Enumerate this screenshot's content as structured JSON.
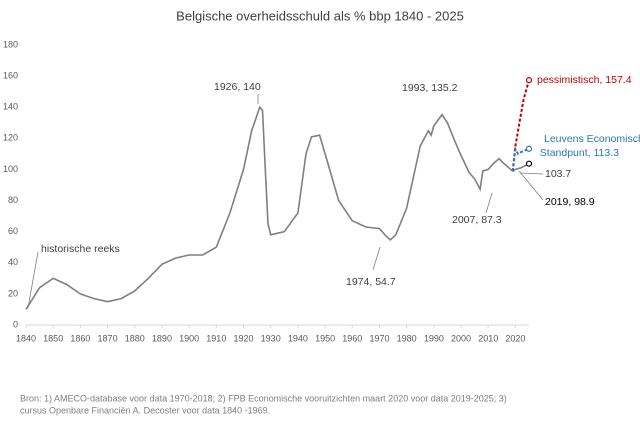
{
  "chart_data": {
    "type": "line",
    "title": "Belgische overheidsschuld als % bbp 1840 - 2025",
    "xlim": [
      1840,
      2025
    ],
    "xticks": [
      1840,
      1850,
      1860,
      1870,
      1880,
      1890,
      1900,
      1910,
      1920,
      1930,
      1940,
      1950,
      1960,
      1970,
      1980,
      1990,
      2000,
      2010,
      2020
    ],
    "ylim": [
      0,
      180
    ],
    "yticks": [
      0,
      20,
      40,
      60,
      80,
      100,
      120,
      140,
      160,
      180
    ],
    "grid": false,
    "series": [
      {
        "name": "historische reeks",
        "color": "#7f7f7f",
        "x": [
          1840,
          1845,
          1850,
          1855,
          1860,
          1865,
          1870,
          1875,
          1880,
          1885,
          1890,
          1895,
          1900,
          1905,
          1910,
          1915,
          1920,
          1923,
          1926,
          1927,
          1928,
          1929,
          1930,
          1935,
          1940,
          1943,
          1945,
          1948,
          1950,
          1955,
          1960,
          1965,
          1970,
          1972,
          1974,
          1976,
          1980,
          1985,
          1988,
          1989,
          1990,
          1993,
          1995,
          1998,
          2000,
          2003,
          2005,
          2007,
          2008,
          2010,
          2012,
          2014,
          2015,
          2017,
          2019
        ],
        "values": [
          10,
          24,
          30,
          26,
          20,
          17,
          15,
          17,
          22,
          30,
          39,
          43,
          45,
          45,
          50,
          72,
          100,
          125,
          140,
          138,
          100,
          65,
          58,
          60,
          72,
          110,
          121,
          122,
          110,
          80,
          67,
          63,
          62,
          58,
          54.7,
          58,
          75,
          115,
          125,
          122,
          128,
          135.2,
          130,
          117,
          109,
          98,
          94,
          87.3,
          99,
          100,
          104,
          107,
          105,
          102,
          98.9
        ]
      },
      {
        "color": "#7f7f7f",
        "dashed": false,
        "x": [
          2019,
          2020,
          2022,
          2025
        ],
        "values": [
          98.9,
          100,
          101,
          103.7
        ],
        "marker": "#000000"
      },
      {
        "color": "#c00000",
        "dashed": true,
        "x": [
          2019,
          2020,
          2021,
          2022,
          2023,
          2025
        ],
        "values": [
          98.9,
          115,
          125,
          135,
          145,
          157.4
        ],
        "marker": "#c00000"
      },
      {
        "color": "#2e75b6",
        "dashed": true,
        "x": [
          2019,
          2020,
          2021,
          2022,
          2023,
          2025
        ],
        "values": [
          98.9,
          113,
          110,
          111,
          112,
          113.3
        ],
        "marker": "#2e75b6"
      }
    ],
    "annotations": [
      "1926, 140",
      "1993, 135.2",
      "1974, 54.7",
      "2007, 87.3",
      "2019, 98.9",
      "103.7",
      "pessimistisch, 157.4",
      "Leuvens Economisch",
      "Standpunt, 113.3"
    ],
    "source": [
      "Bron:  1) AMECO-database voor data 1970-2018; 2) FPB Economische vooruitzichten maart 2020 voor data 2019-2025; 3)",
      "cursus Openbare Financiën A. Decoster voor data 1840 -1969."
    ]
  }
}
